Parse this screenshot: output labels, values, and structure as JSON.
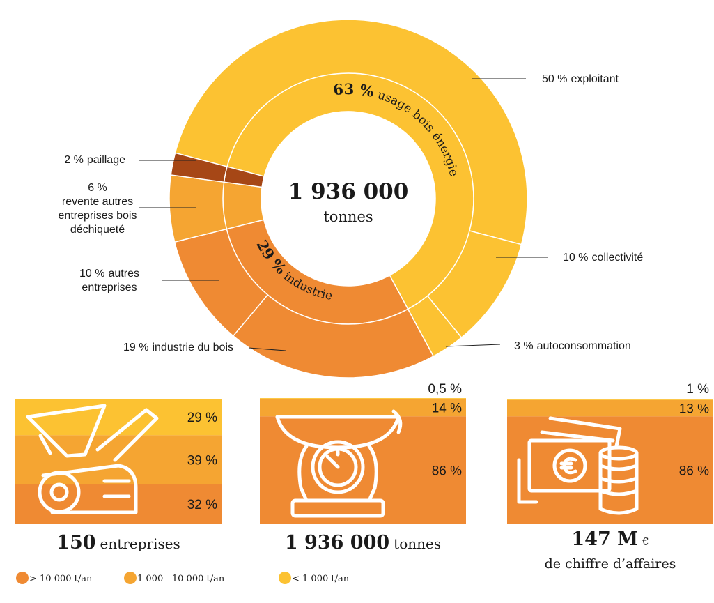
{
  "chart_data": [
    {
      "type": "sunburst",
      "title": "1 936 000",
      "subtitle": "tonnes",
      "inner": {
        "categories": [
          "usage bois énergie",
          "industrie",
          null,
          null
        ],
        "values": [
          63,
          29,
          6,
          2
        ],
        "value_labels": [
          "63 %",
          "29 %",
          null,
          null
        ],
        "colors": [
          "#fcc232",
          "#ef8a33",
          "#f5a532",
          "#a64716"
        ]
      },
      "outer": {
        "categories": [
          "exploitant",
          "collectivité",
          "autoconsommation",
          "industrie du bois",
          "autres\nentreprises",
          "revente autres\nentreprises bois\ndéchiqueté",
          "paillage"
        ],
        "values": [
          50,
          10,
          3,
          19,
          10,
          6,
          2
        ],
        "value_labels": [
          "50 %",
          "10 %",
          "3 %",
          "19 %",
          "10 %",
          "6 %",
          "2 %"
        ],
        "colors": [
          "#fcc232",
          "#fcc232",
          "#fcc232",
          "#ef8a33",
          "#ef8a33",
          "#f5a532",
          "#a64716"
        ]
      }
    },
    {
      "type": "stacked_bar",
      "boxes": [
        {
          "number": "150",
          "unit": "entreprises"
        },
        {
          "number": "1 936 000",
          "unit": "tonnes"
        },
        {
          "number": "147 M",
          "unit": "€",
          "caption": "de chiffre d’affaires"
        }
      ],
      "series": [
        {
          "name": "> 10 000 t/an",
          "color": "#ef8a33",
          "values": [
            32,
            86,
            86
          ],
          "value_labels": [
            "32 %",
            "86 %",
            "86 %"
          ]
        },
        {
          "name": "1 000 - 10 000 t/an",
          "color": "#f5a532",
          "values": [
            39,
            14,
            13
          ],
          "value_labels": [
            "39 %",
            "14 %",
            "13 %"
          ]
        },
        {
          "name": "< 1 000 t/an",
          "color": "#fcc232",
          "values": [
            29,
            0.5,
            1
          ],
          "value_labels": [
            "29 %",
            "0,5 %",
            "1 %"
          ]
        }
      ]
    }
  ]
}
